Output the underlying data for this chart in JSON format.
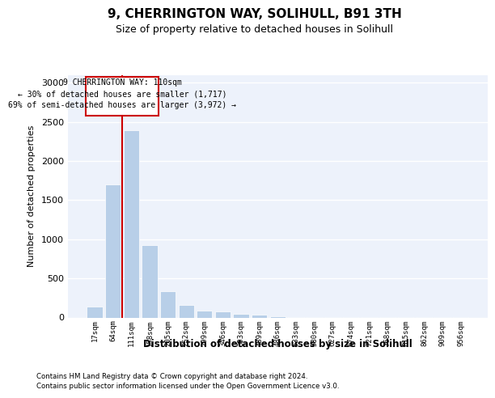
{
  "title": "9, CHERRINGTON WAY, SOLIHULL, B91 3TH",
  "subtitle": "Size of property relative to detached houses in Solihull",
  "xlabel": "Distribution of detached houses by size in Solihull",
  "ylabel": "Number of detached properties",
  "bar_color": "#b8cfe8",
  "bins": [
    "17sqm",
    "64sqm",
    "111sqm",
    "158sqm",
    "205sqm",
    "252sqm",
    "299sqm",
    "346sqm",
    "393sqm",
    "439sqm",
    "486sqm",
    "533sqm",
    "580sqm",
    "627sqm",
    "674sqm",
    "721sqm",
    "768sqm",
    "815sqm",
    "862sqm",
    "909sqm",
    "956sqm"
  ],
  "values": [
    140,
    1700,
    2390,
    920,
    340,
    160,
    90,
    75,
    50,
    35,
    20,
    10,
    8,
    5,
    4,
    3,
    2,
    2,
    1,
    1,
    1
  ],
  "ylim": [
    0,
    3100
  ],
  "yticks": [
    0,
    500,
    1000,
    1500,
    2000,
    2500,
    3000
  ],
  "vline_x_index": 2,
  "annotation_title": "9 CHERRINGTON WAY: 110sqm",
  "annotation_line1": "← 30% of detached houses are smaller (1,717)",
  "annotation_line2": "69% of semi-detached houses are larger (3,972) →",
  "annotation_box_color": "#cc0000",
  "vline_color": "#cc0000",
  "footer1": "Contains HM Land Registry data © Crown copyright and database right 2024.",
  "footer2": "Contains public sector information licensed under the Open Government Licence v3.0.",
  "background_color": "#ffffff",
  "plot_bg_color": "#edf2fb",
  "grid_color": "#ffffff"
}
